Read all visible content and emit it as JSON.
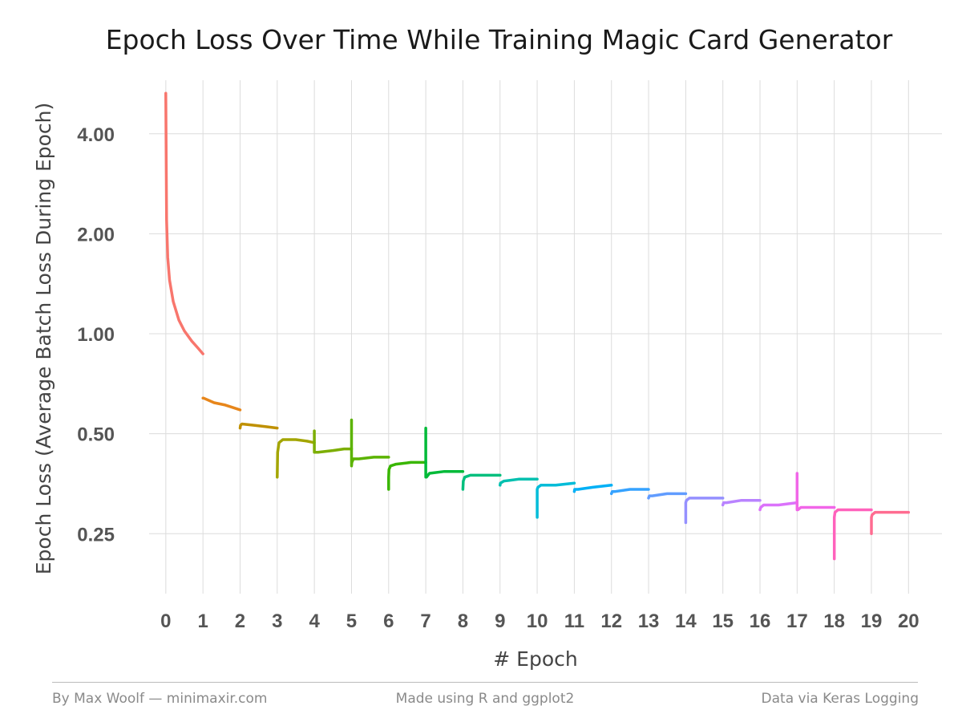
{
  "chart_data": {
    "type": "line",
    "title": "Epoch Loss Over Time While Training Magic Card Generator",
    "xlabel": "# Epoch",
    "ylabel": "Epoch Loss (Average Batch Loss During Epoch)",
    "y_scale": "log",
    "xlim": [
      -0.45,
      20.9
    ],
    "ylim": [
      0.165,
      5.8
    ],
    "x_ticks": [
      0,
      1,
      2,
      3,
      4,
      5,
      6,
      7,
      8,
      9,
      10,
      11,
      12,
      13,
      14,
      15,
      16,
      17,
      18,
      19,
      20
    ],
    "x_tick_labels": [
      "0",
      "1",
      "2",
      "3",
      "4",
      "5",
      "6",
      "7",
      "8",
      "9",
      "10",
      "11",
      "12",
      "13",
      "14",
      "15",
      "16",
      "17",
      "18",
      "19",
      "20"
    ],
    "y_ticks": [
      0.25,
      0.5,
      1.0,
      2.0,
      4.0
    ],
    "y_tick_labels": [
      "0.25",
      "0.50",
      "1.00",
      "2.00",
      "4.00"
    ],
    "grid": true,
    "legend": "none",
    "series": [
      {
        "color": "#F8766D",
        "x": [
          0,
          0.02,
          0.05,
          0.1,
          0.2,
          0.35,
          0.5,
          0.7,
          0.85,
          1.0
        ],
        "y": [
          5.3,
          2.2,
          1.7,
          1.45,
          1.25,
          1.1,
          1.02,
          0.95,
          0.91,
          0.87
        ]
      },
      {
        "color": "#E7861B",
        "x": [
          1.0,
          1.02,
          1.3,
          1.6,
          2.0
        ],
        "y": [
          0.64,
          0.64,
          0.62,
          0.61,
          0.59
        ]
      },
      {
        "color": "#BF9000",
        "x": [
          2.0,
          2.01,
          2.05,
          2.4,
          2.7,
          3.0
        ],
        "y": [
          0.52,
          0.53,
          0.535,
          0.53,
          0.525,
          0.52
        ]
      },
      {
        "color": "#A3A500",
        "x": [
          3.0,
          3.01,
          3.05,
          3.15,
          3.5,
          3.8,
          4.0
        ],
        "y": [
          0.37,
          0.44,
          0.47,
          0.48,
          0.48,
          0.475,
          0.47
        ]
      },
      {
        "color": "#7CAE00",
        "x": [
          4.0,
          4.0,
          4.02,
          4.1,
          4.5,
          4.8,
          5.0
        ],
        "y": [
          0.51,
          0.44,
          0.44,
          0.44,
          0.445,
          0.45,
          0.45
        ]
      },
      {
        "color": "#5BB300",
        "x": [
          5.0,
          5.0,
          5.01,
          5.05,
          5.2,
          5.6,
          6.0
        ],
        "y": [
          0.55,
          0.4,
          0.41,
          0.42,
          0.42,
          0.425,
          0.425
        ]
      },
      {
        "color": "#39B600",
        "x": [
          6.0,
          6.0,
          6.01,
          6.05,
          6.2,
          6.6,
          7.0
        ],
        "y": [
          0.34,
          0.37,
          0.39,
          0.4,
          0.405,
          0.41,
          0.41
        ]
      },
      {
        "color": "#00BA38",
        "x": [
          7.0,
          7.0,
          7.02,
          7.1,
          7.5,
          8.0
        ],
        "y": [
          0.52,
          0.37,
          0.37,
          0.38,
          0.385,
          0.385
        ]
      },
      {
        "color": "#00BF7D",
        "x": [
          8.0,
          8.01,
          8.05,
          8.2,
          8.6,
          9.0
        ],
        "y": [
          0.34,
          0.36,
          0.37,
          0.375,
          0.375,
          0.375
        ]
      },
      {
        "color": "#00C0AF",
        "x": [
          9.0,
          9.01,
          9.1,
          9.5,
          10.0
        ],
        "y": [
          0.35,
          0.355,
          0.36,
          0.365,
          0.365
        ]
      },
      {
        "color": "#00BCD8",
        "x": [
          10.0,
          10.0,
          10.02,
          10.1,
          10.5,
          11.0
        ],
        "y": [
          0.28,
          0.34,
          0.345,
          0.35,
          0.35,
          0.355
        ]
      },
      {
        "color": "#00B0F6",
        "x": [
          11.0,
          11.01,
          11.1,
          11.5,
          12.0
        ],
        "y": [
          0.335,
          0.34,
          0.34,
          0.345,
          0.35
        ]
      },
      {
        "color": "#35A2FF",
        "x": [
          12.0,
          12.02,
          12.1,
          12.5,
          13.0
        ],
        "y": [
          0.33,
          0.335,
          0.335,
          0.34,
          0.34
        ]
      },
      {
        "color": "#619CFF",
        "x": [
          13.0,
          13.02,
          13.1,
          13.5,
          14.0
        ],
        "y": [
          0.32,
          0.325,
          0.325,
          0.33,
          0.33
        ]
      },
      {
        "color": "#9590FF",
        "x": [
          14.0,
          14.0,
          14.02,
          14.1,
          14.5,
          15.0
        ],
        "y": [
          0.27,
          0.31,
          0.315,
          0.32,
          0.32,
          0.32
        ]
      },
      {
        "color": "#B983FF",
        "x": [
          15.0,
          15.02,
          15.1,
          15.5,
          16.0
        ],
        "y": [
          0.305,
          0.31,
          0.31,
          0.315,
          0.315
        ]
      },
      {
        "color": "#DB72FB",
        "x": [
          16.0,
          16.02,
          16.1,
          16.5,
          17.0
        ],
        "y": [
          0.295,
          0.3,
          0.305,
          0.305,
          0.31
        ]
      },
      {
        "color": "#F166E8",
        "x": [
          17.0,
          17.0,
          17.02,
          17.1,
          17.5,
          18.0
        ],
        "y": [
          0.38,
          0.295,
          0.295,
          0.3,
          0.3,
          0.3
        ]
      },
      {
        "color": "#FF62BC",
        "x": [
          18.0,
          18.0,
          18.02,
          18.1,
          18.5,
          19.0
        ],
        "y": [
          0.21,
          0.28,
          0.29,
          0.295,
          0.295,
          0.295
        ]
      },
      {
        "color": "#FF6C91",
        "x": [
          19.0,
          19.0,
          19.02,
          19.1,
          19.5,
          20.0
        ],
        "y": [
          0.25,
          0.28,
          0.285,
          0.29,
          0.29,
          0.29
        ]
      }
    ]
  },
  "footer": {
    "left": "By Max Woolf — minimaxir.com",
    "center": "Made using R and ggplot2",
    "right": "Data via Keras Logging"
  }
}
